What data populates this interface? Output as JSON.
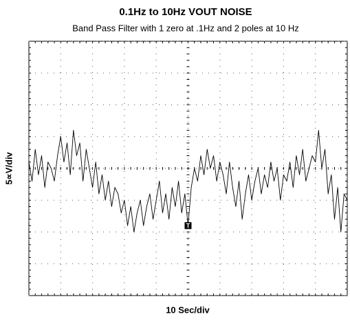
{
  "chart_data": {
    "type": "line",
    "title": "0.1Hz to 10Hz VOUT NOISE",
    "subtitle": "Band Pass Filter with 1 zero at .1Hz and 2 poles at 10 Hz",
    "xlabel": "10 Sec/div",
    "ylabel": "5∝V/div",
    "trigger_label": "T",
    "trigger_x": 50,
    "trigger_y": -9,
    "xlim": [
      0,
      100
    ],
    "xticks": [
      0,
      10,
      20,
      30,
      40,
      50,
      60,
      70,
      80,
      90,
      100
    ],
    "ylim": [
      -20,
      20
    ],
    "yticks": [
      -20,
      -15,
      -10,
      -5,
      0,
      5,
      10,
      15,
      20
    ],
    "grid": true,
    "series": [
      {
        "color": "#000000",
        "x": [
          0,
          1,
          2,
          3,
          4,
          5,
          6,
          7,
          8,
          9,
          10,
          11,
          12,
          13,
          14,
          15,
          16,
          17,
          18,
          19,
          20,
          21,
          22,
          23,
          24,
          25,
          26,
          27,
          28,
          29,
          30,
          31,
          32,
          33,
          34,
          35,
          36,
          37,
          38,
          39,
          40,
          41,
          42,
          43,
          44,
          45,
          46,
          47,
          48,
          49,
          50,
          51,
          52,
          53,
          54,
          55,
          56,
          57,
          58,
          59,
          60,
          61,
          62,
          63,
          64,
          65,
          66,
          67,
          68,
          69,
          70,
          71,
          72,
          73,
          74,
          75,
          76,
          77,
          78,
          79,
          80,
          81,
          82,
          83,
          84,
          85,
          86,
          87,
          88,
          89,
          90,
          91,
          92,
          93,
          94,
          95,
          96,
          97,
          98,
          99,
          100
        ],
        "values": [
          1,
          -2,
          3,
          -1,
          2,
          -3,
          1,
          0,
          -2,
          2,
          5,
          1,
          4,
          -1,
          6,
          2,
          4,
          -2,
          3,
          0,
          -3,
          1,
          -4,
          -1,
          -5,
          -2,
          -6,
          -3,
          -4,
          -7,
          -5,
          -9,
          -6,
          -10,
          -7,
          -5,
          -9,
          -6,
          -4,
          -8,
          -5,
          -2,
          -7,
          -4,
          -8,
          -3,
          -6,
          -2,
          -7,
          -4,
          -9,
          -3,
          0,
          -2,
          2,
          -1,
          3,
          0,
          2,
          -2,
          1,
          -1,
          -4,
          1,
          -3,
          -6,
          -2,
          -8,
          -4,
          -1,
          -5,
          -2,
          0,
          -4,
          -1,
          -3,
          1,
          -2,
          0,
          -5,
          -1,
          -2,
          1,
          -3,
          2,
          -1,
          3,
          -2,
          0,
          2,
          1,
          6,
          0,
          3,
          -4,
          -1,
          -8,
          -3,
          -10,
          -4,
          -5
        ]
      }
    ]
  }
}
